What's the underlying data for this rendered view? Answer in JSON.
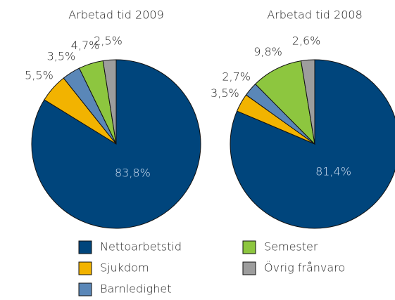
{
  "chart_data": [
    {
      "type": "pie",
      "title": "Arbetad tid 2009",
      "categories": [
        "Nettoarbetstid",
        "Sjukdom",
        "Barnledighet",
        "Semester",
        "Övrig frånvaro"
      ],
      "values": [
        83.8,
        5.5,
        3.5,
        4.7,
        2.5
      ],
      "value_labels": [
        "83,8%",
        "5,5%",
        "3,5%",
        "4,7%",
        "2,5%"
      ],
      "colors": [
        "#00457c",
        "#f2b300",
        "#5a87b8",
        "#8dc63f",
        "#9d9d9d"
      ]
    },
    {
      "type": "pie",
      "title": "Arbetad tid 2008",
      "categories": [
        "Nettoarbetstid",
        "Sjukdom",
        "Barnledighet",
        "Semester",
        "Övrig frånvaro"
      ],
      "values": [
        81.4,
        3.5,
        2.7,
        9.8,
        2.6
      ],
      "value_labels": [
        "81,4%",
        "3,5%",
        "2,7%",
        "9,8%",
        "2,6%"
      ],
      "colors": [
        "#00457c",
        "#f2b300",
        "#5a87b8",
        "#8dc63f",
        "#9d9d9d"
      ]
    }
  ]
}
